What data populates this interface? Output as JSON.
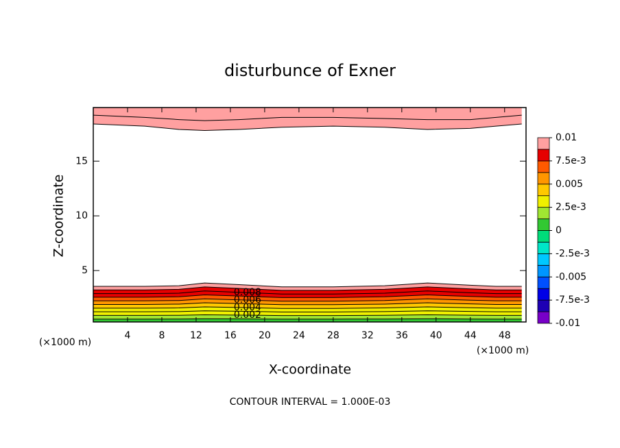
{
  "chart_data": {
    "type": "contour",
    "title": "disturbunce of Exner",
    "xlabel": "X-coordinate",
    "ylabel": "Z-coordinate",
    "x_unit": "(×1000 m)",
    "y_unit": "(×1000 m)",
    "footer": "CONTOUR INTERVAL = 1.000E-03",
    "xlim": [
      0,
      50.5
    ],
    "ylim": [
      0.3,
      19.9
    ],
    "xticks": [
      4,
      8,
      12,
      16,
      20,
      24,
      28,
      32,
      36,
      40,
      44,
      48
    ],
    "yticks": [
      5,
      10,
      15
    ],
    "contour_x": [
      0,
      6,
      10,
      13,
      17,
      22,
      28,
      34,
      39,
      44,
      47,
      50
    ],
    "groups": [
      {
        "region": "bottom",
        "contours": [
          {
            "level": 0.001,
            "z": [
              0.56,
              0.56,
              0.57,
              0.59,
              0.58,
              0.56,
              0.56,
              0.57,
              0.59,
              0.57,
              0.56,
              0.56
            ]
          },
          {
            "level": 0.002,
            "z": [
              0.9,
              0.9,
              0.91,
              0.96,
              0.93,
              0.89,
              0.89,
              0.91,
              0.96,
              0.92,
              0.9,
              0.9
            ]
          },
          {
            "level": 0.003,
            "z": [
              1.23,
              1.23,
              1.25,
              1.32,
              1.28,
              1.21,
              1.21,
              1.25,
              1.32,
              1.26,
              1.23,
              1.23
            ]
          },
          {
            "level": 0.004,
            "z": [
              1.56,
              1.56,
              1.58,
              1.68,
              1.62,
              1.54,
              1.54,
              1.58,
              1.68,
              1.6,
              1.56,
              1.56
            ]
          },
          {
            "level": 0.005,
            "z": [
              1.9,
              1.9,
              1.93,
              2.05,
              1.98,
              1.88,
              1.88,
              1.93,
              2.05,
              1.95,
              1.9,
              1.9
            ]
          },
          {
            "level": 0.006,
            "z": [
              2.23,
              2.23,
              2.26,
              2.41,
              2.32,
              2.2,
              2.2,
              2.26,
              2.41,
              2.29,
              2.23,
              2.23
            ]
          },
          {
            "level": 0.007,
            "z": [
              2.56,
              2.56,
              2.6,
              2.77,
              2.67,
              2.53,
              2.53,
              2.6,
              2.77,
              2.63,
              2.56,
              2.56
            ]
          },
          {
            "level": 0.008,
            "z": [
              2.89,
              2.89,
              2.93,
              3.13,
              3.01,
              2.85,
              2.85,
              2.93,
              3.13,
              2.97,
              2.89,
              2.89
            ]
          },
          {
            "level": 0.009,
            "z": [
              3.23,
              3.23,
              3.28,
              3.5,
              3.37,
              3.19,
              3.19,
              3.28,
              3.5,
              3.32,
              3.23,
              3.23
            ]
          },
          {
            "level": 0.01,
            "z": [
              3.56,
              3.56,
              3.61,
              3.86,
              3.71,
              3.51,
              3.51,
              3.61,
              3.86,
              3.66,
              3.56,
              3.56
            ]
          }
        ]
      },
      {
        "region": "top",
        "contours": [
          {
            "level": 0.009,
            "z": [
              18.4,
              18.2,
              17.9,
              17.8,
              17.9,
              18.1,
              18.2,
              18.1,
              17.9,
              18.0,
              18.2,
              18.4
            ]
          },
          {
            "level": 0.01,
            "z": [
              19.2,
              19.0,
              18.8,
              18.7,
              18.8,
              19.0,
              19.0,
              18.9,
              18.8,
              18.8,
              19.0,
              19.2
            ]
          }
        ]
      }
    ],
    "contour_labels": [
      0.008,
      0.006,
      0.004,
      0.002
    ],
    "contour_label_x": 18,
    "colorbar": {
      "lim": [
        -0.01,
        0.01
      ],
      "colors": [
        "#7800c8",
        "#1e00b4",
        "#0000e6",
        "#0050ff",
        "#0096ff",
        "#00c8ff",
        "#00e6c8",
        "#00dc7a",
        "#32c832",
        "#a0e632",
        "#f0f000",
        "#ffc800",
        "#ff9600",
        "#ff5a00",
        "#e60000",
        "#ffa0a0"
      ],
      "ticks": [
        0.01,
        {
          "value": 0.0075,
          "label": "7.5e-3"
        },
        0.005,
        {
          "value": 0.0025,
          "label": "2.5e-3"
        },
        0,
        {
          "value": -0.0025,
          "label": "-2.5e-3"
        },
        -0.005,
        {
          "value": -0.0075,
          "label": "-7.5e-3"
        },
        -0.01
      ]
    }
  }
}
